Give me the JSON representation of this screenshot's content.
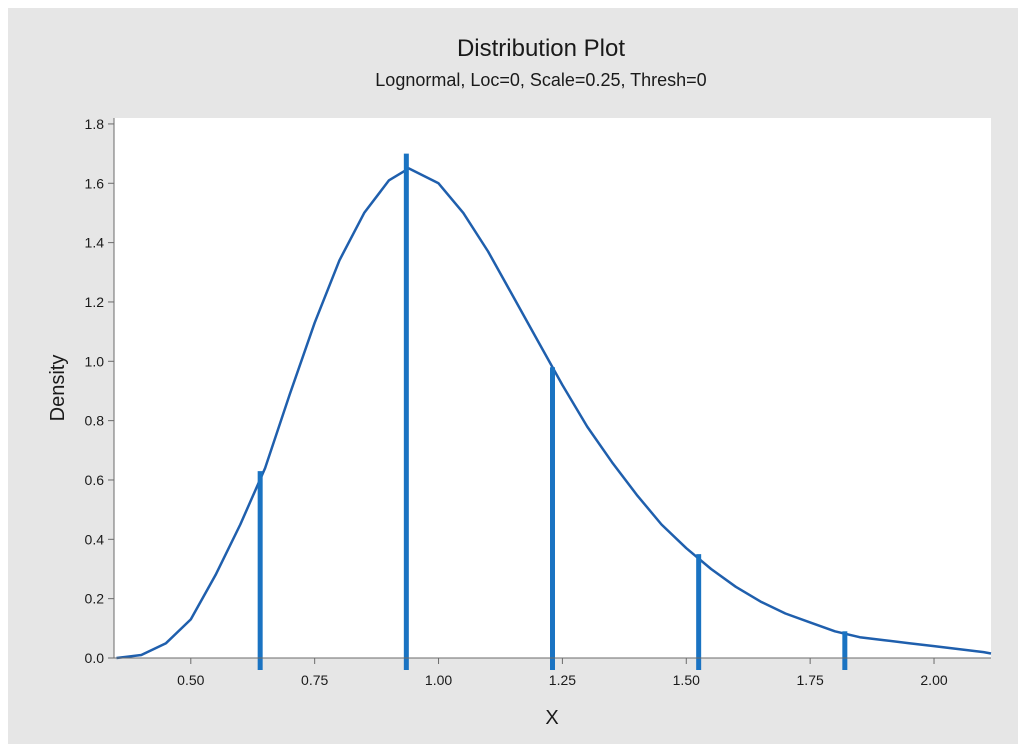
{
  "chart_data": {
    "type": "line",
    "title": "Distribution Plot",
    "subtitle": "Lognormal, Loc=0, Scale=0.25, Thresh=0",
    "xlabel": "X",
    "ylabel": "Density",
    "xlim": [
      0.345,
      2.115
    ],
    "ylim": [
      0,
      1.82
    ],
    "x_ticks": [
      0.5,
      0.75,
      1.0,
      1.25,
      1.5,
      1.75,
      2.0
    ],
    "x_tick_labels": [
      "0.50",
      "0.75",
      "1.00",
      "1.25",
      "1.50",
      "1.75",
      "2.00"
    ],
    "y_ticks": [
      0,
      0.2,
      0.4,
      0.6,
      0.8,
      1.0,
      1.2,
      1.4,
      1.6,
      1.8
    ],
    "y_tick_labels": [
      "0.0",
      "0.2",
      "0.4",
      "0.6",
      "0.8",
      "1.0",
      "1.2",
      "1.4",
      "1.6",
      "1.8"
    ],
    "grid": false,
    "distribution": {
      "family": "lognormal",
      "loc": 0,
      "scale": 0.25,
      "threshold": 0
    },
    "series": [
      {
        "values_x": [
          0.35,
          0.4,
          0.45,
          0.5,
          0.55,
          0.6,
          0.65,
          0.7,
          0.75,
          0.8,
          0.85,
          0.9,
          0.94,
          1.0,
          1.05,
          1.1,
          1.15,
          1.2,
          1.25,
          1.3,
          1.35,
          1.4,
          1.45,
          1.5,
          1.55,
          1.6,
          1.65,
          1.7,
          1.75,
          1.8,
          1.85,
          1.9,
          1.95,
          2.0,
          2.05,
          2.1
        ],
        "values_y": [
          0.0,
          0.01,
          0.05,
          0.13,
          0.28,
          0.45,
          0.64,
          0.89,
          1.13,
          1.34,
          1.5,
          1.61,
          1.65,
          1.6,
          1.5,
          1.37,
          1.22,
          1.07,
          0.92,
          0.78,
          0.66,
          0.55,
          0.45,
          0.37,
          0.3,
          0.24,
          0.19,
          0.15,
          0.12,
          0.09,
          0.07,
          0.06,
          0.05,
          0.04,
          0.03,
          0.02
        ]
      }
    ],
    "reference_lines": [
      {
        "x": 0.64,
        "y_top": 0.63
      },
      {
        "x": 0.935,
        "y_top": 1.7
      },
      {
        "x": 1.23,
        "y_top": 0.98
      },
      {
        "x": 1.525,
        "y_top": 0.35
      },
      {
        "x": 1.82,
        "y_top": 0.09
      }
    ],
    "colors": {
      "curve": "#1f5fad",
      "reference_line": "#1a73c2",
      "frame_background": "#e6e6e6",
      "plot_background": "#ffffff"
    }
  }
}
